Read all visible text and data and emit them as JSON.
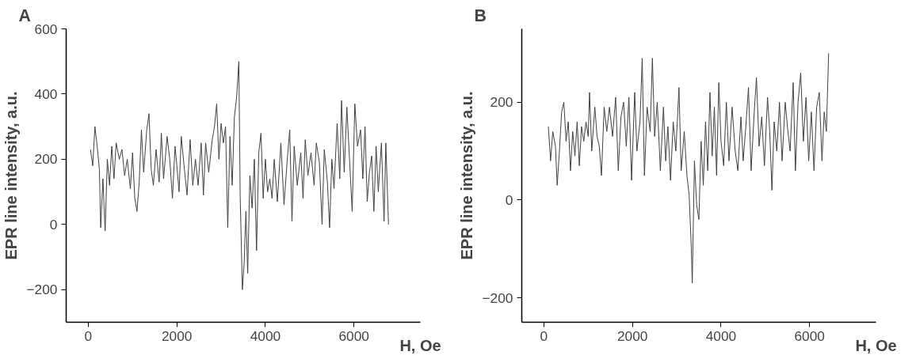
{
  "chart_data": [
    {
      "type": "line",
      "title": "A",
      "xlabel": "H, Oe",
      "ylabel": "EPR line intensity, a.u.",
      "xlim": [
        -500,
        7500
      ],
      "ylim": [
        -300,
        600
      ],
      "xticks": [
        0,
        2000,
        4000,
        6000
      ],
      "yticks": [
        -200,
        0,
        200,
        400,
        600
      ],
      "series": [
        {
          "color": "#404040",
          "x": [
            50,
            100,
            150,
            200,
            250,
            280,
            330,
            380,
            430,
            480,
            530,
            580,
            630,
            700,
            760,
            820,
            880,
            950,
            1000,
            1050,
            1100,
            1150,
            1200,
            1250,
            1320,
            1370,
            1420,
            1470,
            1530,
            1600,
            1650,
            1700,
            1780,
            1840,
            1900,
            1960,
            2000,
            2050,
            2100,
            2170,
            2230,
            2300,
            2360,
            2420,
            2480,
            2550,
            2600,
            2650,
            2720,
            2800,
            2850,
            2900,
            2950,
            3000,
            3050,
            3100,
            3150,
            3200,
            3250,
            3300,
            3350,
            3400,
            3430,
            3480,
            3520,
            3560,
            3600,
            3650,
            3700,
            3750,
            3800,
            3850,
            3900,
            3950,
            4000,
            4050,
            4100,
            4150,
            4200,
            4270,
            4350,
            4420,
            4500,
            4550,
            4600,
            4650,
            4720,
            4800,
            4850,
            4900,
            4960,
            5030,
            5100,
            5150,
            5220,
            5280,
            5330,
            5400,
            5450,
            5500,
            5550,
            5620,
            5680,
            5720,
            5780,
            5840,
            5900,
            5960,
            6020,
            6080,
            6150,
            6200,
            6250,
            6300,
            6350,
            6400,
            6450,
            6500,
            6550,
            6620,
            6680,
            6720,
            6780
          ],
          "values": [
            230,
            180,
            300,
            240,
            170,
            -10,
            140,
            -20,
            200,
            120,
            240,
            140,
            250,
            200,
            230,
            150,
            200,
            110,
            220,
            80,
            40,
            130,
            290,
            160,
            290,
            340,
            170,
            120,
            230,
            130,
            280,
            140,
            270,
            200,
            80,
            240,
            180,
            100,
            270,
            170,
            90,
            260,
            120,
            200,
            120,
            250,
            90,
            250,
            160,
            260,
            300,
            370,
            200,
            310,
            250,
            300,
            -10,
            270,
            120,
            330,
            390,
            500,
            90,
            -200,
            -120,
            40,
            -150,
            150,
            50,
            200,
            -80,
            220,
            280,
            80,
            200,
            100,
            140,
            80,
            200,
            70,
            250,
            60,
            210,
            290,
            10,
            240,
            120,
            220,
            80,
            260,
            150,
            220,
            120,
            250,
            190,
            0,
            230,
            130,
            -10,
            200,
            110,
            310,
            140,
            380,
            160,
            360,
            200,
            40,
            370,
            240,
            290,
            140,
            300,
            70,
            160,
            210,
            40,
            240,
            100,
            250,
            10,
            250,
            0
          ]
        }
      ]
    },
    {
      "type": "line",
      "title": "B",
      "xlabel": "H, Oe",
      "ylabel": "EPR line intensity, a.u.",
      "xlim": [
        -500,
        7500
      ],
      "ylim": [
        -250,
        350
      ],
      "xticks": [
        0,
        2000,
        4000,
        6000
      ],
      "yticks": [
        -200,
        0,
        200
      ],
      "series": [
        {
          "color": "#404040",
          "x": [
            100,
            150,
            200,
            260,
            300,
            350,
            400,
            450,
            500,
            550,
            600,
            650,
            700,
            750,
            800,
            850,
            900,
            950,
            1000,
            1030,
            1080,
            1150,
            1200,
            1250,
            1300,
            1360,
            1420,
            1480,
            1550,
            1620,
            1680,
            1740,
            1800,
            1860,
            1920,
            1980,
            2050,
            2100,
            2170,
            2220,
            2270,
            2330,
            2400,
            2450,
            2500,
            2560,
            2630,
            2700,
            2750,
            2800,
            2860,
            2920,
            2980,
            3050,
            3100,
            3170,
            3230,
            3280,
            3330,
            3350,
            3400,
            3450,
            3500,
            3550,
            3600,
            3650,
            3700,
            3750,
            3800,
            3850,
            3900,
            3950,
            4000,
            4060,
            4120,
            4180,
            4250,
            4320,
            4380,
            4450,
            4500,
            4560,
            4620,
            4680,
            4750,
            4800,
            4860,
            4920,
            4980,
            5050,
            5100,
            5150,
            5200,
            5260,
            5320,
            5380,
            5450,
            5500,
            5560,
            5630,
            5680,
            5740,
            5800,
            5860,
            5920,
            5980,
            6040,
            6100,
            6160,
            6220,
            6280,
            6330,
            6380,
            6430
          ],
          "values": [
            150,
            80,
            140,
            110,
            30,
            100,
            180,
            200,
            120,
            160,
            60,
            140,
            90,
            160,
            70,
            150,
            120,
            160,
            130,
            220,
            100,
            190,
            130,
            110,
            50,
            190,
            140,
            190,
            130,
            210,
            60,
            170,
            200,
            110,
            210,
            40,
            220,
            100,
            160,
            290,
            50,
            190,
            140,
            290,
            130,
            200,
            60,
            190,
            80,
            150,
            40,
            160,
            100,
            230,
            60,
            140,
            50,
            10,
            -100,
            -170,
            80,
            -10,
            -40,
            120,
            30,
            160,
            60,
            220,
            90,
            190,
            50,
            240,
            120,
            70,
            200,
            80,
            190,
            100,
            60,
            170,
            80,
            150,
            230,
            60,
            180,
            250,
            110,
            170,
            70,
            210,
            140,
            20,
            160,
            100,
            200,
            80,
            200,
            150,
            100,
            240,
            60,
            200,
            260,
            120,
            210,
            80,
            180,
            60,
            190,
            220,
            80,
            180,
            140,
            300
          ]
        }
      ]
    }
  ]
}
